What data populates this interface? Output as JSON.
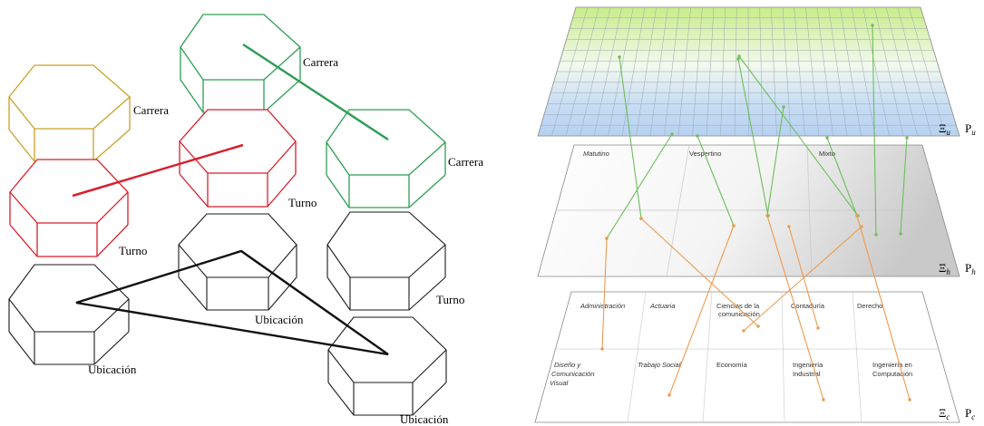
{
  "left_diagram": {
    "hex_labels": {
      "carrera_yellow": "Carrera",
      "carrera_green_top": "Carrera",
      "carrera_green_mid": "Carrera",
      "turno_red_right": "Turno",
      "turno_red_left": "Turno",
      "turno_black_right": "Turno",
      "ubicacion_center": "Ubicación",
      "ubicacion_left": "Ubicación",
      "ubicacion_bottom": "Ubicación"
    },
    "colors": {
      "carrera": "#c9a227",
      "carrera_green": "#2e9d55",
      "turno": "#d81e2a",
      "ubicacion": "#1a1a1a"
    }
  },
  "right_diagram": {
    "top_plane": {
      "xi": "Ξ",
      "xi_sub": "u",
      "p": "P",
      "p_sub": "u"
    },
    "mid_plane": {
      "xi": "Ξ",
      "xi_sub": "h",
      "p": "P",
      "p_sub": "h",
      "shifts": [
        "Matutino",
        "Vespertino",
        "Mixto"
      ]
    },
    "bottom_plane": {
      "xi": "Ξ",
      "xi_sub": "c",
      "p": "P",
      "p_sub": "c",
      "row1": [
        "Administración",
        "Actuaria",
        "Ciencias de la comunicación",
        "Contaduría",
        "Derecho"
      ],
      "row2": [
        "Diseño y Comunicación Visual",
        "Trabajo Social",
        "Economía",
        "Ingeniería Industrial",
        "Ingeniería en Computación"
      ]
    },
    "colors": {
      "green_link": "#6cbf5b",
      "orange_link": "#ef9a4d"
    }
  }
}
